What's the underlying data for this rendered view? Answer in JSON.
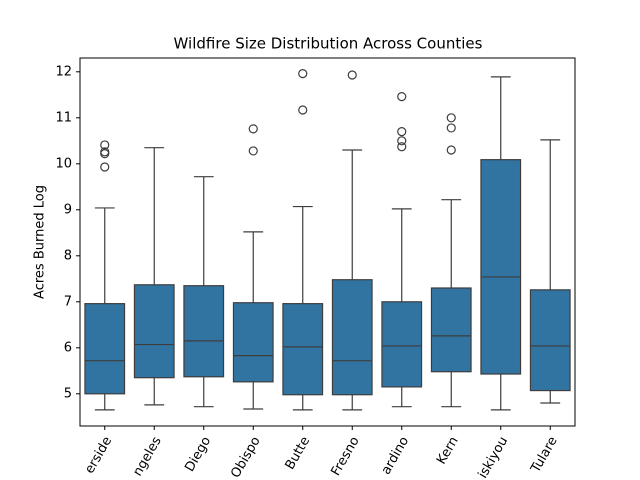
{
  "chart_data": {
    "type": "box",
    "title": "Wildfire Size Distribution Across Counties",
    "ylabel": "Acres Burned Log",
    "categories": [
      "erside",
      "ngeles",
      "Diego",
      "Obispo",
      "Butte",
      "Fresno",
      "ardino",
      "Kern",
      "iskiyou",
      "Tulare"
    ],
    "color": "#3274a1",
    "boxes": [
      {
        "min": 4.65,
        "q1": 5.0,
        "median": 5.72,
        "q3": 6.96,
        "max": 9.04,
        "outliers": [
          10.41,
          10.26,
          10.22,
          9.93
        ]
      },
      {
        "min": 4.76,
        "q1": 5.35,
        "median": 6.07,
        "q3": 7.37,
        "max": 10.35,
        "outliers": []
      },
      {
        "min": 4.72,
        "q1": 5.37,
        "median": 6.15,
        "q3": 7.35,
        "max": 9.72,
        "outliers": []
      },
      {
        "min": 4.67,
        "q1": 5.26,
        "median": 5.83,
        "q3": 6.98,
        "max": 8.52,
        "outliers": [
          10.76,
          10.28
        ]
      },
      {
        "min": 4.65,
        "q1": 4.98,
        "median": 6.02,
        "q3": 6.96,
        "max": 9.07,
        "outliers": [
          11.96,
          11.17
        ]
      },
      {
        "min": 4.65,
        "q1": 4.98,
        "median": 5.72,
        "q3": 7.48,
        "max": 10.3,
        "outliers": [
          11.93
        ]
      },
      {
        "min": 4.72,
        "q1": 5.15,
        "median": 6.04,
        "q3": 7.0,
        "max": 9.02,
        "outliers": [
          11.46,
          10.7,
          10.5,
          10.37
        ]
      },
      {
        "min": 4.72,
        "q1": 5.48,
        "median": 6.26,
        "q3": 7.3,
        "max": 9.22,
        "outliers": [
          11.0,
          10.78,
          10.3
        ]
      },
      {
        "min": 4.65,
        "q1": 5.43,
        "median": 7.54,
        "q3": 10.09,
        "max": 11.89,
        "outliers": []
      },
      {
        "min": 4.8,
        "q1": 5.07,
        "median": 6.04,
        "q3": 7.26,
        "max": 10.52,
        "outliers": []
      }
    ],
    "ylim": [
      4.3,
      12.3
    ],
    "yticks": [
      5,
      6,
      7,
      8,
      9,
      10,
      11,
      12
    ]
  }
}
